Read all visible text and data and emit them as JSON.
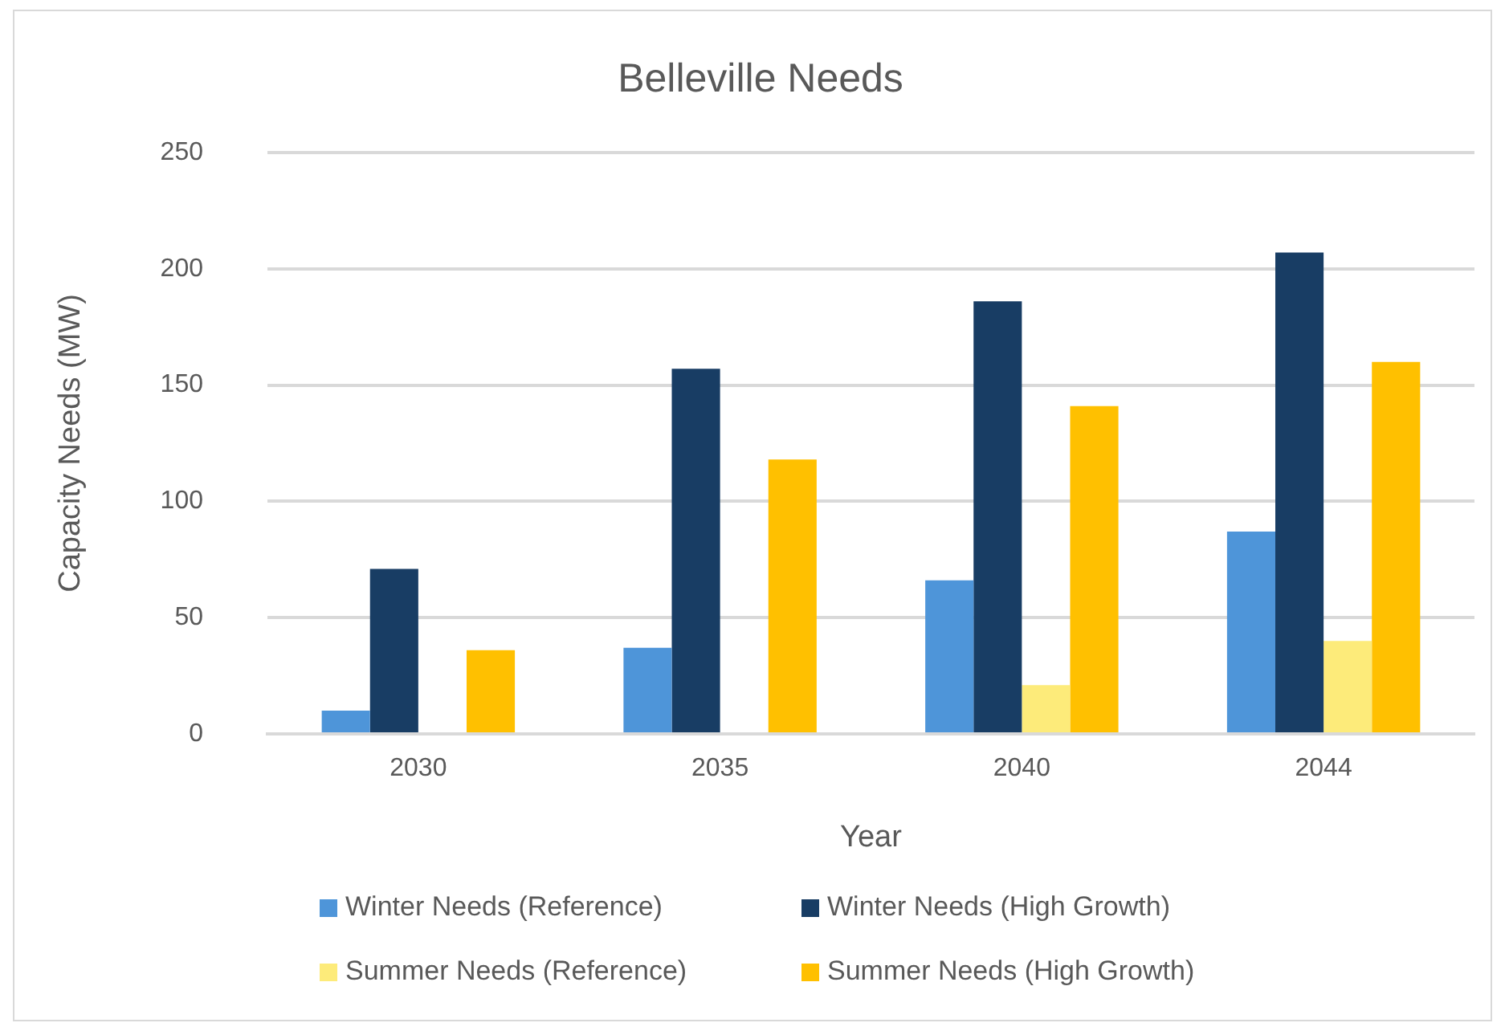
{
  "chart_data": {
    "type": "bar",
    "title": "Belleville Needs",
    "xlabel": "Year",
    "ylabel": "Capacity Needs (MW)",
    "categories": [
      "2030",
      "2035",
      "2040",
      "2044"
    ],
    "series": [
      {
        "name": "Winter Needs (Reference)",
        "color": "#4e95d9",
        "values": [
          10,
          37,
          66,
          87
        ]
      },
      {
        "name": "Winter Needs (High Growth)",
        "color": "#183d64",
        "values": [
          71,
          157,
          186,
          207
        ]
      },
      {
        "name": "Summer Needs (Reference)",
        "color": "#fdeb7a",
        "values": [
          0,
          0,
          21,
          40
        ]
      },
      {
        "name": "Summer Needs (High Growth)",
        "color": "#ffc000",
        "values": [
          36,
          118,
          141,
          160
        ]
      }
    ],
    "ylim": [
      0,
      250
    ],
    "yticks": [
      0,
      50,
      100,
      150,
      200,
      250
    ],
    "grid": "y",
    "legend": "bottom"
  }
}
